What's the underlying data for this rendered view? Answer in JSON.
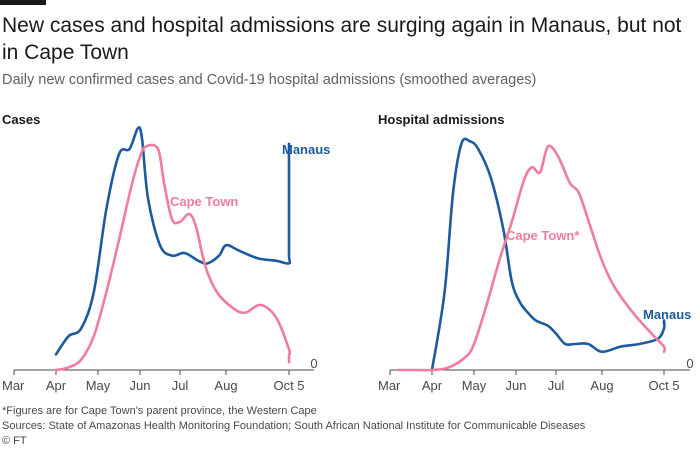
{
  "title": "New cases and hospital admissions are surging again in Manaus, but not in Cape Town",
  "subtitle": "Daily new confirmed cases and Covid-19 hospital admissions (smoothed averages)",
  "footnote": "*Figures are for Cape Town's parent province, the Western Cape",
  "sources": "Sources: State of Amazonas Health Monitoring Foundation; South African National Institute for Communicable Diseases",
  "credit": "© FT",
  "colors": {
    "manaus": "#1d5a9e",
    "cape_town": "#f07c9e",
    "axis": "#4d4845"
  },
  "chart_data": [
    {
      "type": "line",
      "title": "Cases",
      "x_ticks": [
        "Mar",
        "Apr",
        "May",
        "Jun",
        "Jul",
        "Aug",
        "Oct 5"
      ],
      "y_ticks": [
        "0"
      ],
      "series": [
        {
          "name": "Manaus",
          "points": [
            [
              1.0,
              0.06
            ],
            [
              1.3,
              0.13
            ],
            [
              1.6,
              0.16
            ],
            [
              1.9,
              0.3
            ],
            [
              2.2,
              0.62
            ],
            [
              2.5,
              0.83
            ],
            [
              2.75,
              0.85
            ],
            [
              2.95,
              0.93
            ],
            [
              3.05,
              0.89
            ],
            [
              3.2,
              0.66
            ],
            [
              3.5,
              0.48
            ],
            [
              3.8,
              0.44
            ],
            [
              4.1,
              0.45
            ],
            [
              4.4,
              0.42
            ],
            [
              4.6,
              0.41
            ],
            [
              4.85,
              0.44
            ],
            [
              5.0,
              0.48
            ],
            [
              5.2,
              0.46
            ],
            [
              5.5,
              0.43
            ],
            [
              5.8,
              0.42
            ],
            [
              6.1,
              0.41
            ],
            [
              6.35,
              0.44
            ],
            [
              6.55,
              0.55
            ],
            [
              6.75,
              0.72
            ],
            [
              6.9,
              0.87
            ]
          ]
        },
        {
          "name": "Cape Town",
          "points": [
            [
              1.0,
              0.0
            ],
            [
              1.3,
              0.01
            ],
            [
              1.6,
              0.04
            ],
            [
              1.9,
              0.13
            ],
            [
              2.2,
              0.3
            ],
            [
              2.5,
              0.5
            ],
            [
              2.8,
              0.71
            ],
            [
              3.0,
              0.82
            ],
            [
              3.15,
              0.86
            ],
            [
              3.45,
              0.85
            ],
            [
              3.6,
              0.72
            ],
            [
              3.8,
              0.58
            ],
            [
              4.0,
              0.57
            ],
            [
              4.2,
              0.6
            ],
            [
              4.35,
              0.55
            ],
            [
              4.55,
              0.4
            ],
            [
              4.8,
              0.3
            ],
            [
              5.1,
              0.24
            ],
            [
              5.3,
              0.22
            ],
            [
              5.55,
              0.25
            ],
            [
              5.8,
              0.2
            ],
            [
              6.0,
              0.08
            ],
            [
              6.2,
              0.06
            ],
            [
              6.4,
              0.05
            ],
            [
              6.6,
              0.04
            ],
            [
              6.8,
              0.03
            ]
          ]
        }
      ]
    },
    {
      "type": "line",
      "title": "Hospital admissions",
      "x_ticks": [
        "Mar",
        "Apr",
        "May",
        "Jun",
        "Jul",
        "Aug",
        "Oct 5"
      ],
      "y_ticks": [
        "0"
      ],
      "series": [
        {
          "name": "Manaus",
          "points": [
            [
              1.0,
              0.0
            ],
            [
              1.3,
              0.3
            ],
            [
              1.5,
              0.68
            ],
            [
              1.7,
              0.87
            ],
            [
              1.9,
              0.88
            ],
            [
              2.1,
              0.85
            ],
            [
              2.4,
              0.74
            ],
            [
              2.7,
              0.54
            ],
            [
              2.9,
              0.34
            ],
            [
              3.1,
              0.26
            ],
            [
              3.3,
              0.22
            ],
            [
              3.5,
              0.19
            ],
            [
              3.8,
              0.17
            ],
            [
              4.0,
              0.14
            ],
            [
              4.2,
              0.1
            ],
            [
              4.4,
              0.1
            ],
            [
              4.7,
              0.1
            ],
            [
              5.0,
              0.07
            ],
            [
              5.3,
              0.09
            ],
            [
              5.6,
              0.1
            ],
            [
              5.9,
              0.12
            ],
            [
              6.2,
              0.16
            ],
            [
              6.45,
              0.19
            ],
            [
              6.65,
              0.18
            ]
          ]
        },
        {
          "name": "Cape Town*",
          "points": [
            [
              0.2,
              0.0
            ],
            [
              0.6,
              0.0
            ],
            [
              1.0,
              0.0
            ],
            [
              1.4,
              0.01
            ],
            [
              1.8,
              0.05
            ],
            [
              2.0,
              0.1
            ],
            [
              2.3,
              0.25
            ],
            [
              2.6,
              0.42
            ],
            [
              2.9,
              0.57
            ],
            [
              3.2,
              0.73
            ],
            [
              3.4,
              0.78
            ],
            [
              3.6,
              0.76
            ],
            [
              3.8,
              0.86
            ],
            [
              4.05,
              0.82
            ],
            [
              4.3,
              0.72
            ],
            [
              4.5,
              0.68
            ],
            [
              4.75,
              0.55
            ],
            [
              5.0,
              0.42
            ],
            [
              5.2,
              0.32
            ],
            [
              5.5,
              0.22
            ],
            [
              5.8,
              0.14
            ],
            [
              6.1,
              0.09
            ],
            [
              6.3,
              0.07
            ]
          ]
        }
      ]
    }
  ]
}
